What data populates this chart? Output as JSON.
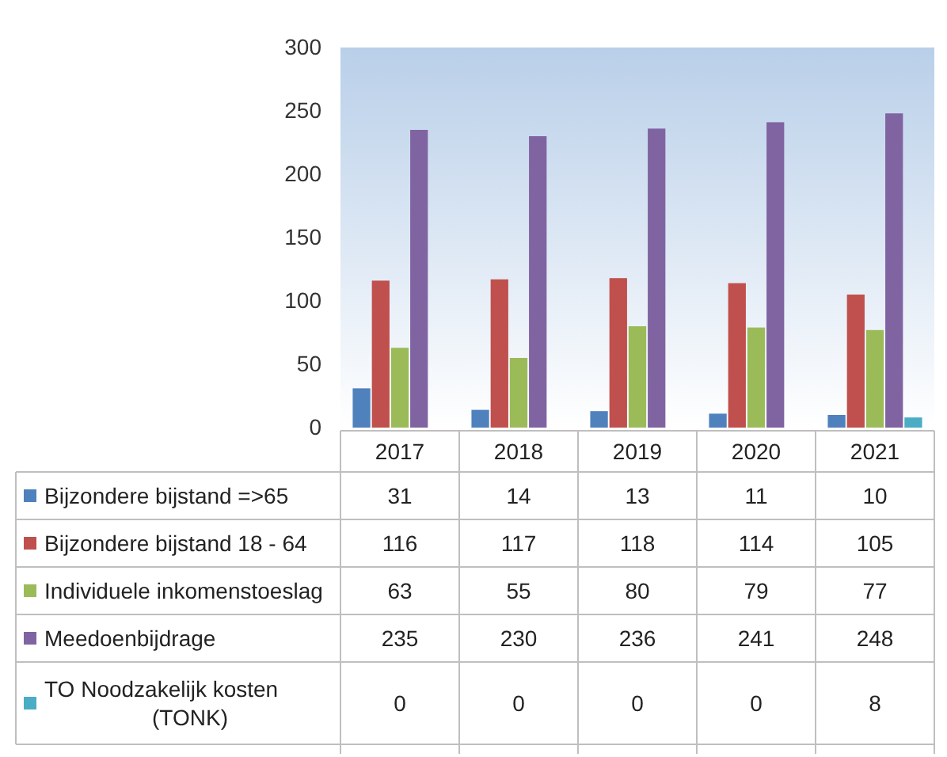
{
  "chart_data": {
    "type": "bar",
    "categories": [
      "2017",
      "2018",
      "2019",
      "2020",
      "2021"
    ],
    "series": [
      {
        "name": "Bijzondere bijstand =>65",
        "color": "#4f81bd",
        "values": [
          31,
          14,
          13,
          11,
          10
        ]
      },
      {
        "name": "Bijzondere bijstand 18 - 64",
        "color": "#c0504d",
        "values": [
          116,
          117,
          118,
          114,
          105
        ]
      },
      {
        "name": "Individuele inkomenstoeslag",
        "color": "#9bbb59",
        "values": [
          63,
          55,
          80,
          79,
          77
        ]
      },
      {
        "name": "Meedoenbijdrage",
        "color": "#8064a2",
        "values": [
          235,
          230,
          236,
          241,
          248
        ]
      },
      {
        "name": "TO Noodzakelijk kosten (TONK)",
        "color": "#4bacc6",
        "values": [
          0,
          0,
          0,
          0,
          8
        ]
      }
    ],
    "ylim": [
      0,
      300
    ],
    "yticks": [
      0,
      50,
      100,
      150,
      200,
      250,
      300
    ],
    "data_labels": true,
    "legend": "bottom",
    "grid": false
  }
}
